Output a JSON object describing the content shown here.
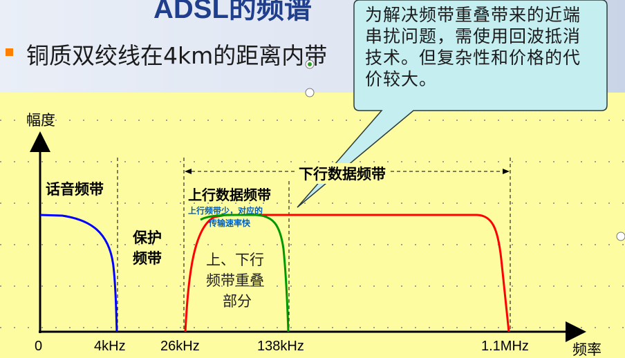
{
  "slide": {
    "title": "ADSL的频谱",
    "bullet_text": "铜质双绞线在4km的距离内带",
    "callout": "为解决频带重叠带来的近端串扰问题，需使用回波抵消技术。但复杂性和价格的代价较大。",
    "colors": {
      "top_band": "#dfe6f2",
      "diagram_bg": "#fefca0",
      "callout_fill": "#c5eef1",
      "callout_border": "#2a3a3a",
      "bullet": "#ff7f00",
      "voice_curve": "#0000ff",
      "upstream_curve": "#009a00",
      "downstream_curve": "#ff0000",
      "sub_note": "#0060c0"
    }
  },
  "diagram": {
    "y_axis_label": "幅度",
    "x_axis_label": "频率",
    "x_ticks": [
      "0",
      "4kHz",
      "26kHz",
      "138kHz",
      "1.1MHz"
    ],
    "voice_band": "话音频带",
    "guard_band_line1": "保护",
    "guard_band_line2": "频带",
    "upstream_band": "上行数据频带",
    "upstream_note_line1": "上行频带少，对应的",
    "upstream_note_line2": "传输速率快",
    "overlap_line1": "上、下行",
    "overlap_line2": "频带重叠",
    "overlap_line3": "部分",
    "downstream_band": "下行数据频带"
  }
}
